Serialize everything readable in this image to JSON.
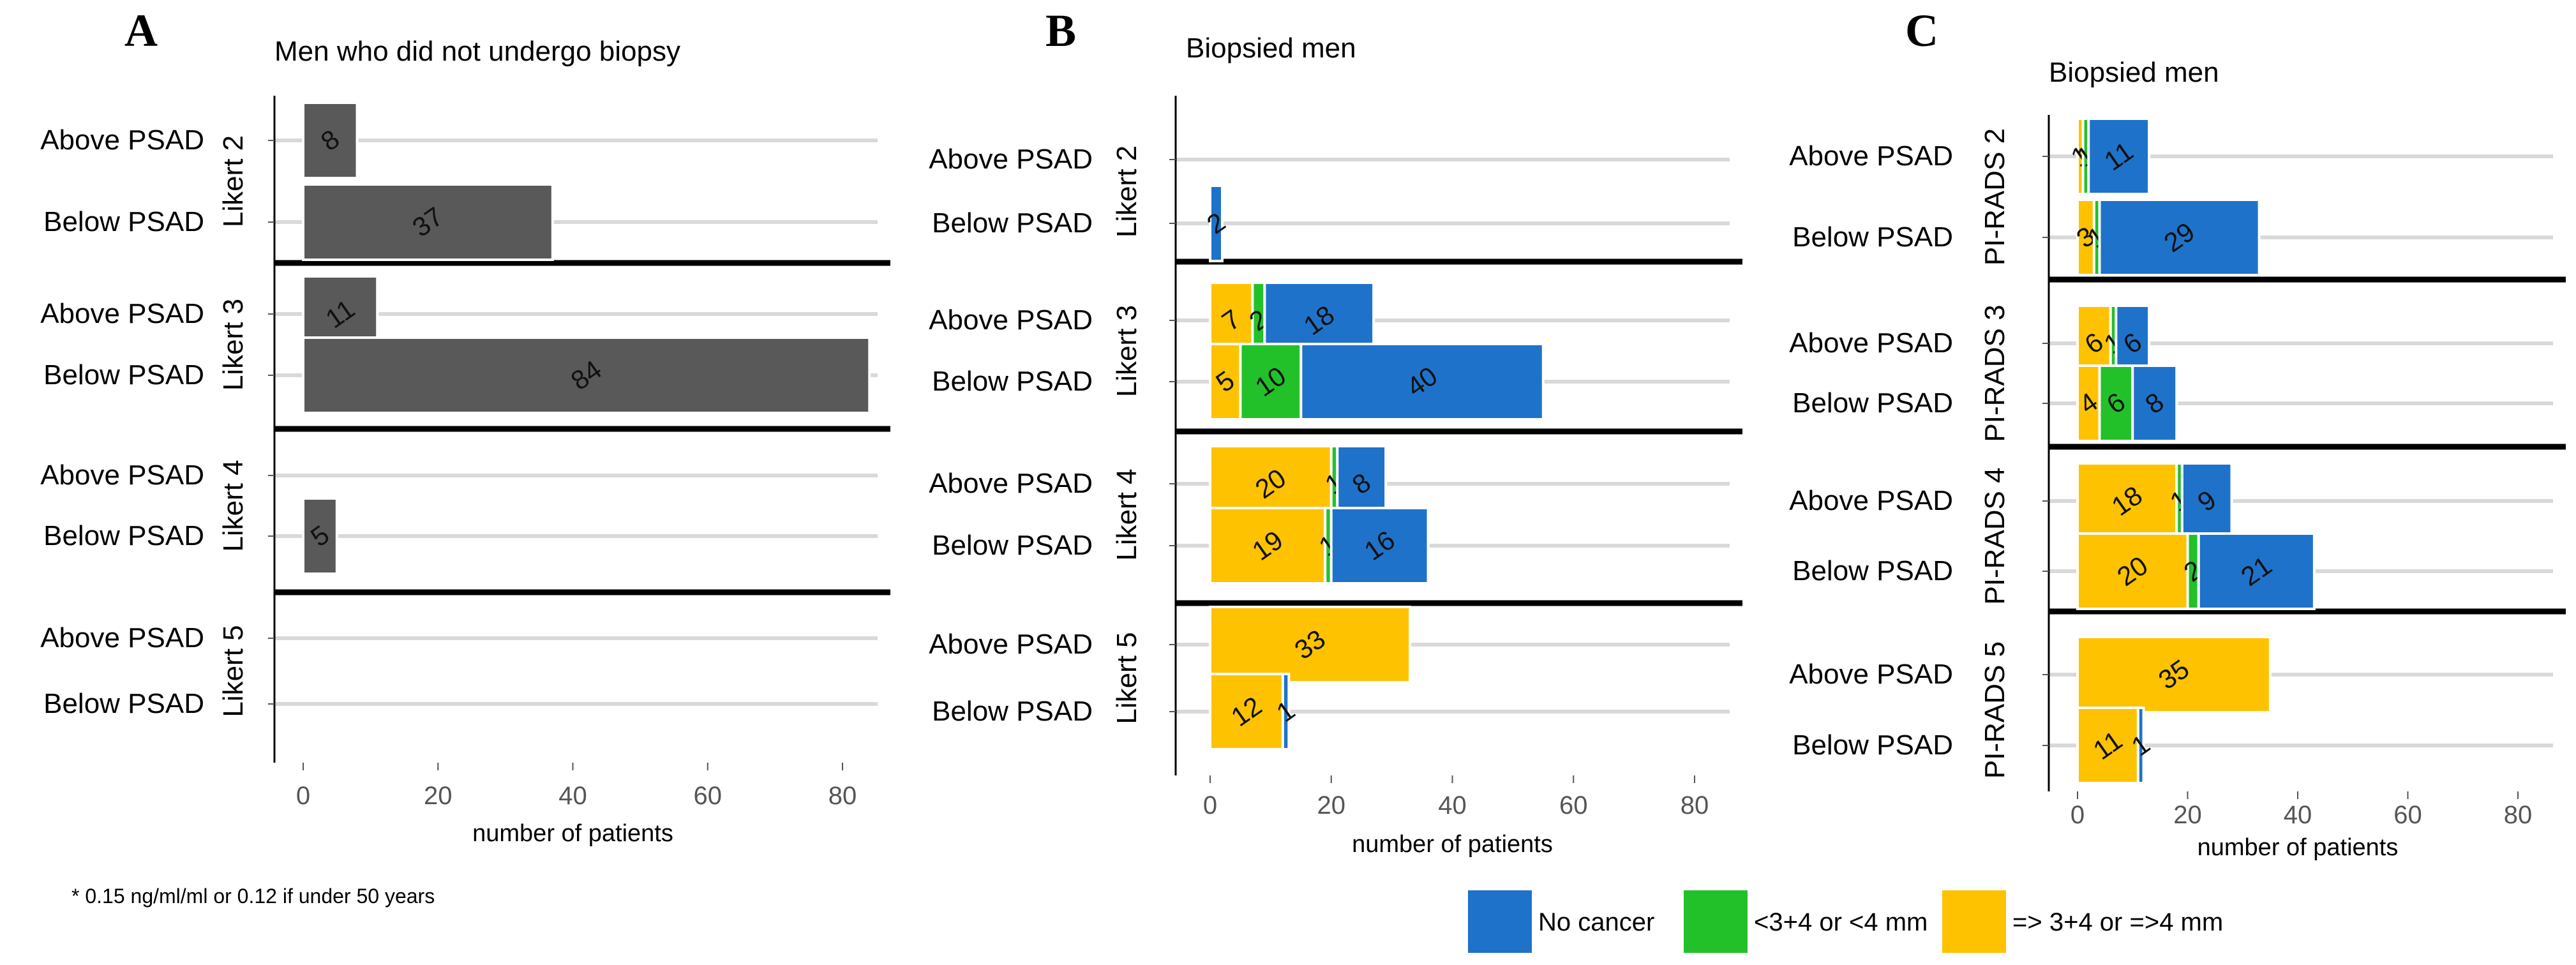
{
  "footnote": "* 0.15 ng/ml/ml or 0.12 if under 50 years",
  "colors": {
    "no_cancer": "#1F72C9",
    "low_grade": "#22C12A",
    "high_grade": "#FFC200",
    "not_biopsied": "#595959",
    "grid": "#D9D9D9",
    "separator": "#000000"
  },
  "legend": [
    {
      "label": "No cancer",
      "color": "#1F72C9"
    },
    {
      "label": "<3+4 or <4 mm",
      "color": "#22C12A"
    },
    {
      "label": "=> 3+4 or =>4 mm",
      "color": "#FFC200"
    }
  ],
  "chart_data": [
    {
      "panel": "A",
      "type": "bar",
      "orientation": "horizontal",
      "stacked": false,
      "title": "Men who did not undergo biopsy",
      "xlabel": "number of patients",
      "xlim": [
        -3,
        90
      ],
      "xticks": [
        0,
        20,
        40,
        60,
        80
      ],
      "tick_labels": [
        "0",
        "20",
        "40",
        "60",
        "80"
      ],
      "groups": [
        {
          "label": "Likert 2",
          "rows": [
            {
              "label": "Above PSAD",
              "values": [
                8
              ]
            },
            {
              "label": "Below PSAD",
              "values": [
                37
              ]
            }
          ]
        },
        {
          "label": "Likert 3",
          "rows": [
            {
              "label": "Above PSAD",
              "values": [
                11
              ]
            },
            {
              "label": "Below PSAD",
              "values": [
                84
              ]
            }
          ]
        },
        {
          "label": "Likert 4",
          "rows": [
            {
              "label": "Above PSAD",
              "values": []
            },
            {
              "label": "Below PSAD",
              "values": [
                5
              ]
            }
          ]
        },
        {
          "label": "Likert 5",
          "rows": [
            {
              "label": "Above PSAD",
              "values": []
            },
            {
              "label": "Below PSAD",
              "values": []
            }
          ]
        }
      ],
      "series": [
        {
          "name": "Not biopsied",
          "color": "#595959"
        }
      ]
    },
    {
      "panel": "B",
      "type": "bar",
      "orientation": "horizontal",
      "stacked": true,
      "title": "Biopsied men",
      "xlabel": "number of patients",
      "xlim": [
        -3,
        90
      ],
      "xticks": [
        0,
        20,
        40,
        60,
        80
      ],
      "tick_labels": [
        "0",
        "20",
        "40",
        "60",
        "80"
      ],
      "series": [
        {
          "name": "=> 3+4 or =>4 mm",
          "color": "#FFC200"
        },
        {
          "name": "<3+4 or <4 mm",
          "color": "#22C12A"
        },
        {
          "name": "No cancer",
          "color": "#1F72C9"
        }
      ],
      "groups": [
        {
          "label": "Likert 2",
          "rows": [
            {
              "label": "Above PSAD",
              "values": [
                0,
                0,
                0
              ]
            },
            {
              "label": "Below PSAD",
              "values": [
                0,
                0,
                2
              ]
            }
          ]
        },
        {
          "label": "Likert 3",
          "rows": [
            {
              "label": "Above PSAD",
              "values": [
                7,
                2,
                18
              ]
            },
            {
              "label": "Below PSAD",
              "values": [
                5,
                10,
                40
              ]
            }
          ]
        },
        {
          "label": "Likert 4",
          "rows": [
            {
              "label": "Above PSAD",
              "values": [
                20,
                1,
                8
              ]
            },
            {
              "label": "Below PSAD",
              "values": [
                19,
                1,
                16
              ]
            }
          ]
        },
        {
          "label": "Likert 5",
          "rows": [
            {
              "label": "Above PSAD",
              "values": [
                33,
                0,
                0
              ]
            },
            {
              "label": "Below PSAD",
              "values": [
                12,
                0,
                1
              ]
            }
          ]
        }
      ]
    },
    {
      "panel": "C",
      "type": "bar",
      "orientation": "horizontal",
      "stacked": true,
      "title": "Biopsied men",
      "xlabel": "number of patients",
      "xlim": [
        -3,
        90
      ],
      "xticks": [
        0,
        20,
        40,
        60,
        80
      ],
      "tick_labels": [
        "0",
        "20",
        "40",
        "60",
        "80"
      ],
      "series": [
        {
          "name": "=> 3+4 or =>4 mm",
          "color": "#FFC200"
        },
        {
          "name": "<3+4 or <4 mm",
          "color": "#22C12A"
        },
        {
          "name": "No cancer",
          "color": "#1F72C9"
        }
      ],
      "groups": [
        {
          "label": "PI-RADS 2",
          "rows": [
            {
              "label": "Above PSAD",
              "values": [
                1,
                1,
                11
              ]
            },
            {
              "label": "Below PSAD",
              "values": [
                3,
                1,
                29
              ]
            }
          ]
        },
        {
          "label": "PI-RADS 3",
          "rows": [
            {
              "label": "Above PSAD",
              "values": [
                6,
                1,
                6
              ]
            },
            {
              "label": "Below PSAD",
              "values": [
                4,
                6,
                8
              ]
            }
          ]
        },
        {
          "label": "PI-RADS 4",
          "rows": [
            {
              "label": "Above PSAD",
              "values": [
                18,
                1,
                9
              ]
            },
            {
              "label": "Below PSAD",
              "values": [
                20,
                2,
                21
              ]
            }
          ]
        },
        {
          "label": "PI-RADS 5",
          "rows": [
            {
              "label": "Above PSAD",
              "values": [
                35,
                0,
                0
              ]
            },
            {
              "label": "Below PSAD",
              "values": [
                11,
                0,
                1
              ]
            }
          ]
        }
      ]
    }
  ]
}
